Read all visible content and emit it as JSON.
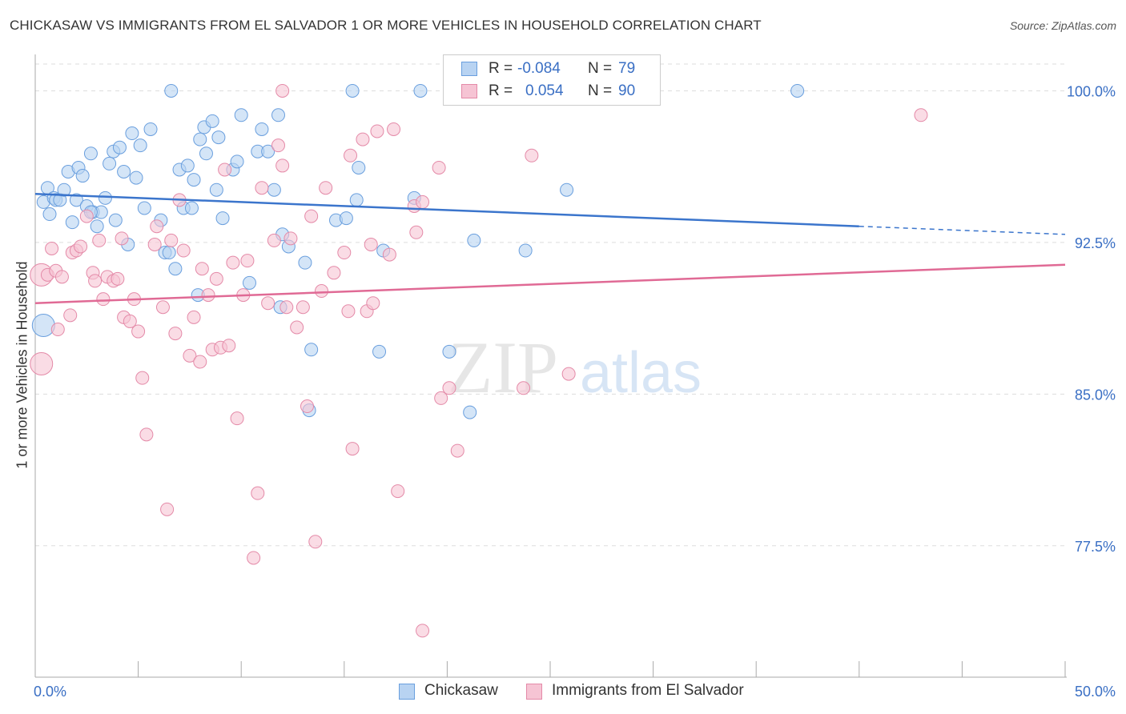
{
  "title": "CHICKASAW VS IMMIGRANTS FROM EL SALVADOR 1 OR MORE VEHICLES IN HOUSEHOLD CORRELATION CHART",
  "source": "Source: ZipAtlas.com",
  "watermark": {
    "zip": "ZIP",
    "atlas": "atlas"
  },
  "legend": {
    "r_label": "R =",
    "n_label": "N =",
    "series": [
      {
        "name": "Chickasaw",
        "r": "-0.084",
        "n": "79"
      },
      {
        "name": "Immigrants from El Salvador",
        "r": "0.054",
        "n": "90"
      }
    ]
  },
  "colors": {
    "blue_fill": "#b8d3f2",
    "blue_stroke": "#6a9fde",
    "blue_line": "#3b75cc",
    "pink_fill": "#f6c4d4",
    "pink_stroke": "#e48aa8",
    "pink_line": "#e06a95",
    "tick_label": "#3a6fc4",
    "grid": "#dddddd"
  },
  "chart_data": {
    "type": "scatter",
    "title": "CHICKASAW VS IMMIGRANTS FROM EL SALVADOR 1 OR MORE VEHICLES IN HOUSEHOLD CORRELATION CHART",
    "xlabel": "",
    "ylabel": "1 or more Vehicles in Household",
    "xlim": [
      0,
      50
    ],
    "ylim": [
      71.0,
      101.8
    ],
    "x_tick_labels": [
      "0.0%",
      "50.0%"
    ],
    "y_ticks": [
      77.5,
      85.0,
      92.5,
      100.0
    ],
    "y_tick_labels": [
      "77.5%",
      "85.0%",
      "92.5%",
      "100.0%"
    ],
    "grid": true,
    "legend_position": "top-center",
    "series": [
      {
        "name": "Chickasaw",
        "trend": {
          "x": [
            0,
            40,
            50
          ],
          "y": [
            94.9,
            93.3,
            92.9
          ],
          "solid_until": 40
        },
        "points": [
          [
            0.4,
            88.4
          ],
          [
            0.4,
            94.5
          ],
          [
            0.6,
            95.2
          ],
          [
            0.7,
            93.9
          ],
          [
            0.9,
            94.7
          ],
          [
            1.0,
            94.6
          ],
          [
            1.2,
            94.6
          ],
          [
            1.4,
            95.1
          ],
          [
            1.6,
            96.0
          ],
          [
            1.8,
            93.5
          ],
          [
            2.0,
            94.6
          ],
          [
            2.1,
            96.2
          ],
          [
            2.3,
            95.8
          ],
          [
            2.5,
            94.3
          ],
          [
            2.7,
            96.9
          ],
          [
            2.8,
            94.0
          ],
          [
            3.0,
            93.3
          ],
          [
            3.2,
            94.0
          ],
          [
            3.4,
            94.7
          ],
          [
            3.6,
            96.4
          ],
          [
            3.8,
            97.0
          ],
          [
            3.9,
            93.6
          ],
          [
            4.1,
            97.2
          ],
          [
            4.3,
            96.0
          ],
          [
            4.5,
            92.4
          ],
          [
            4.7,
            97.9
          ],
          [
            4.9,
            95.7
          ],
          [
            5.1,
            97.3
          ],
          [
            5.3,
            94.2
          ],
          [
            5.6,
            98.1
          ],
          [
            6.1,
            93.6
          ],
          [
            6.3,
            92.0
          ],
          [
            6.5,
            92.0
          ],
          [
            6.6,
            100.0
          ],
          [
            6.8,
            91.2
          ],
          [
            7.0,
            96.1
          ],
          [
            7.2,
            94.2
          ],
          [
            7.4,
            96.3
          ],
          [
            7.6,
            94.2
          ],
          [
            7.7,
            95.6
          ],
          [
            7.9,
            89.9
          ],
          [
            8.0,
            97.6
          ],
          [
            8.2,
            98.2
          ],
          [
            8.3,
            96.9
          ],
          [
            8.6,
            98.5
          ],
          [
            8.8,
            95.1
          ],
          [
            8.9,
            97.7
          ],
          [
            9.1,
            93.7
          ],
          [
            9.6,
            96.1
          ],
          [
            9.8,
            96.5
          ],
          [
            10.0,
            98.8
          ],
          [
            10.4,
            90.5
          ],
          [
            10.8,
            97.0
          ],
          [
            11.0,
            98.1
          ],
          [
            11.3,
            97.0
          ],
          [
            11.6,
            95.1
          ],
          [
            11.8,
            98.8
          ],
          [
            11.9,
            89.3
          ],
          [
            12.0,
            92.9
          ],
          [
            12.3,
            92.3
          ],
          [
            13.1,
            91.5
          ],
          [
            13.3,
            84.2
          ],
          [
            13.4,
            87.2
          ],
          [
            14.6,
            93.6
          ],
          [
            15.1,
            93.7
          ],
          [
            15.6,
            94.6
          ],
          [
            15.7,
            96.2
          ],
          [
            15.4,
            100.0
          ],
          [
            16.7,
            87.1
          ],
          [
            16.9,
            92.1
          ],
          [
            18.4,
            94.7
          ],
          [
            18.7,
            100.0
          ],
          [
            20.1,
            87.1
          ],
          [
            21.1,
            84.1
          ],
          [
            21.3,
            92.6
          ],
          [
            23.8,
            92.1
          ],
          [
            25.8,
            95.1
          ],
          [
            37.0,
            100.0
          ],
          [
            2.7,
            94.0
          ]
        ]
      },
      {
        "name": "Immigrants from El Salvador",
        "trend": {
          "x": [
            0,
            50
          ],
          "y": [
            89.5,
            91.4
          ]
        },
        "points": [
          [
            0.3,
            90.9
          ],
          [
            0.3,
            86.5
          ],
          [
            0.6,
            90.9
          ],
          [
            0.8,
            92.2
          ],
          [
            1.0,
            91.1
          ],
          [
            1.1,
            88.2
          ],
          [
            1.3,
            90.8
          ],
          [
            1.7,
            88.9
          ],
          [
            1.8,
            92.0
          ],
          [
            2.0,
            92.1
          ],
          [
            2.2,
            92.3
          ],
          [
            2.5,
            93.8
          ],
          [
            2.8,
            91.0
          ],
          [
            2.9,
            90.6
          ],
          [
            3.1,
            92.6
          ],
          [
            3.3,
            89.7
          ],
          [
            3.5,
            90.8
          ],
          [
            3.8,
            90.6
          ],
          [
            4.0,
            90.7
          ],
          [
            4.2,
            92.7
          ],
          [
            4.3,
            88.8
          ],
          [
            4.6,
            88.6
          ],
          [
            4.8,
            89.7
          ],
          [
            5.0,
            88.1
          ],
          [
            5.2,
            85.8
          ],
          [
            5.4,
            83.0
          ],
          [
            5.8,
            92.4
          ],
          [
            5.9,
            93.3
          ],
          [
            6.2,
            89.3
          ],
          [
            6.4,
            79.3
          ],
          [
            6.6,
            92.6
          ],
          [
            6.8,
            88.0
          ],
          [
            7.0,
            94.6
          ],
          [
            7.2,
            92.1
          ],
          [
            7.5,
            86.9
          ],
          [
            7.7,
            88.8
          ],
          [
            8.0,
            86.6
          ],
          [
            8.1,
            91.2
          ],
          [
            8.4,
            89.9
          ],
          [
            8.6,
            87.2
          ],
          [
            8.8,
            90.7
          ],
          [
            9.0,
            87.3
          ],
          [
            9.2,
            96.1
          ],
          [
            9.4,
            87.4
          ],
          [
            9.6,
            91.5
          ],
          [
            9.8,
            83.8
          ],
          [
            10.1,
            89.9
          ],
          [
            10.3,
            91.6
          ],
          [
            10.6,
            76.9
          ],
          [
            10.8,
            80.1
          ],
          [
            11.0,
            95.2
          ],
          [
            11.3,
            89.5
          ],
          [
            11.6,
            92.6
          ],
          [
            11.8,
            97.3
          ],
          [
            12.0,
            96.3
          ],
          [
            12.2,
            89.3
          ],
          [
            12.4,
            92.7
          ],
          [
            12.7,
            88.3
          ],
          [
            13.0,
            89.3
          ],
          [
            13.2,
            84.4
          ],
          [
            13.4,
            93.8
          ],
          [
            13.6,
            77.7
          ],
          [
            13.9,
            90.1
          ],
          [
            14.1,
            95.2
          ],
          [
            14.5,
            91.0
          ],
          [
            15.0,
            92.0
          ],
          [
            15.2,
            89.1
          ],
          [
            15.3,
            96.8
          ],
          [
            15.4,
            82.3
          ],
          [
            15.9,
            97.6
          ],
          [
            16.1,
            89.1
          ],
          [
            16.3,
            92.4
          ],
          [
            16.4,
            89.5
          ],
          [
            16.6,
            98.0
          ],
          [
            17.2,
            91.9
          ],
          [
            17.4,
            98.1
          ],
          [
            17.6,
            80.2
          ],
          [
            18.4,
            94.3
          ],
          [
            18.5,
            93.0
          ],
          [
            18.8,
            94.5
          ],
          [
            18.8,
            73.3
          ],
          [
            19.6,
            96.2
          ],
          [
            19.7,
            84.8
          ],
          [
            20.1,
            85.3
          ],
          [
            20.5,
            82.2
          ],
          [
            23.7,
            85.3
          ],
          [
            24.1,
            96.8
          ],
          [
            25.9,
            86.0
          ],
          [
            43.0,
            98.8
          ],
          [
            12.0,
            100.0
          ]
        ]
      }
    ]
  }
}
